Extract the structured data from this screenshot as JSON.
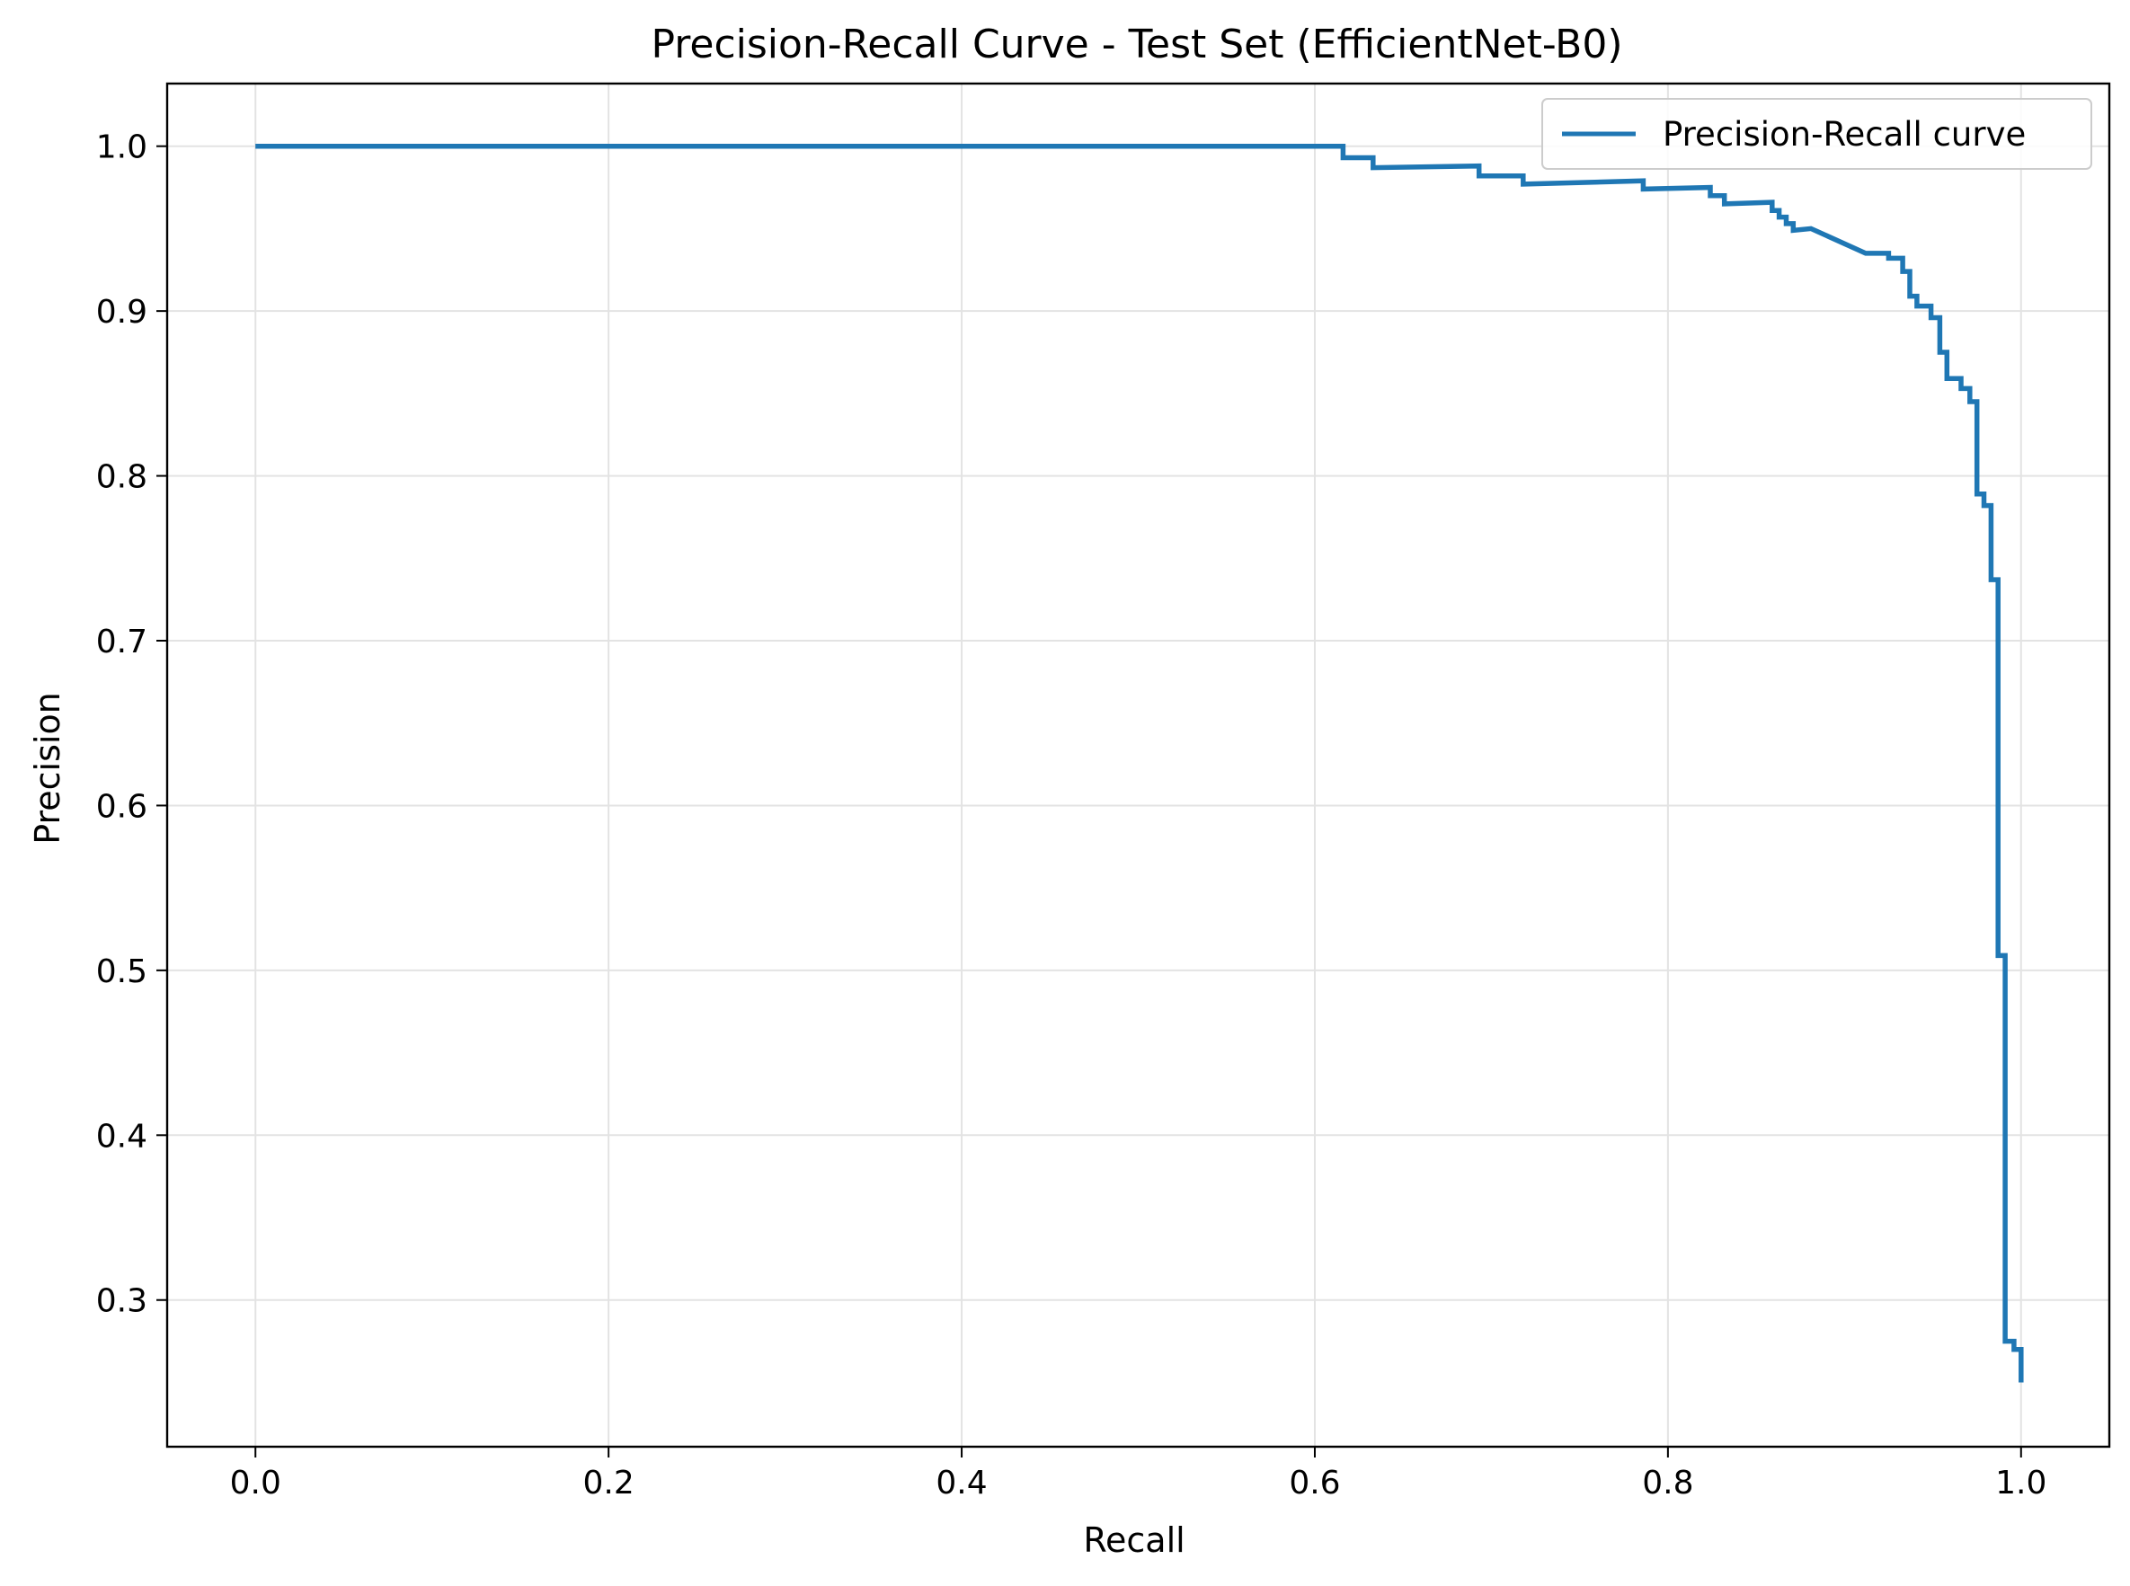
{
  "chart_data": {
    "type": "line",
    "title": "Precision-Recall Curve - Test Set (EfficientNet-B0)",
    "xlabel": "Recall",
    "ylabel": "Precision",
    "xlim": [
      -0.05,
      1.05
    ],
    "ylim": [
      0.211,
      1.038
    ],
    "xticks": [
      0.0,
      0.2,
      0.4,
      0.6,
      0.8,
      1.0
    ],
    "xtick_labels": [
      "0.0",
      "0.2",
      "0.4",
      "0.6",
      "0.8",
      "1.0"
    ],
    "yticks": [
      0.3,
      0.4,
      0.5,
      0.6,
      0.7,
      0.8,
      0.9,
      1.0
    ],
    "ytick_labels": [
      "0.3",
      "0.4",
      "0.5",
      "0.6",
      "0.7",
      "0.8",
      "0.9",
      "1.0"
    ],
    "grid": true,
    "legend_position": "top-right",
    "series": [
      {
        "name": "Precision-Recall curve",
        "color": "#1f77b4",
        "x": [
          0.0,
          0.616,
          0.616,
          0.633,
          0.633,
          0.693,
          0.693,
          0.718,
          0.718,
          0.786,
          0.786,
          0.824,
          0.824,
          0.832,
          0.832,
          0.859,
          0.859,
          0.863,
          0.863,
          0.867,
          0.867,
          0.871,
          0.871,
          0.881,
          0.912,
          0.925,
          0.925,
          0.933,
          0.933,
          0.937,
          0.937,
          0.941,
          0.941,
          0.949,
          0.949,
          0.954,
          0.954,
          0.958,
          0.958,
          0.966,
          0.966,
          0.971,
          0.971,
          0.975,
          0.975,
          0.979,
          0.979,
          0.983,
          0.983,
          0.987,
          0.987,
          0.991,
          0.991,
          0.996,
          0.996,
          1.0,
          1.0
        ],
        "y": [
          1.0,
          1.0,
          0.993,
          0.993,
          0.987,
          0.988,
          0.982,
          0.982,
          0.977,
          0.979,
          0.974,
          0.975,
          0.97,
          0.97,
          0.965,
          0.966,
          0.961,
          0.961,
          0.957,
          0.957,
          0.953,
          0.953,
          0.949,
          0.95,
          0.935,
          0.935,
          0.932,
          0.932,
          0.924,
          0.924,
          0.909,
          0.909,
          0.903,
          0.903,
          0.896,
          0.896,
          0.875,
          0.875,
          0.859,
          0.859,
          0.853,
          0.853,
          0.845,
          0.845,
          0.789,
          0.789,
          0.782,
          0.782,
          0.737,
          0.737,
          0.509,
          0.509,
          0.275,
          0.275,
          0.27,
          0.27,
          0.25
        ]
      }
    ]
  }
}
